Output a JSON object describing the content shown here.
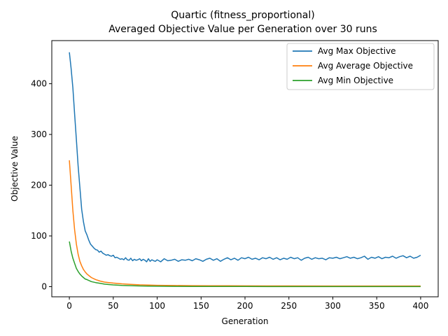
{
  "chart_data": {
    "type": "line",
    "title_line1": "Quartic (fitness_proportional)",
    "title_line2": "Averaged Objective Value per Generation over 30 runs",
    "xlabel": "Generation",
    "ylabel": "Objective Value",
    "xlim": [
      -20,
      420
    ],
    "ylim": [
      -20,
      485
    ],
    "xticks": [
      0,
      50,
      100,
      150,
      200,
      250,
      300,
      350,
      400
    ],
    "yticks": [
      0,
      100,
      200,
      300,
      400
    ],
    "grid": false,
    "legend_position": "top-right",
    "series": [
      {
        "name": "Avg Max Objective",
        "color": "#1f77b4",
        "x": [
          0,
          2,
          4,
          6,
          8,
          10,
          12,
          14,
          16,
          18,
          20,
          22,
          24,
          26,
          28,
          30,
          32,
          34,
          36,
          38,
          40,
          42,
          44,
          46,
          48,
          50,
          52,
          54,
          56,
          58,
          60,
          62,
          64,
          66,
          68,
          70,
          72,
          74,
          76,
          78,
          80,
          82,
          84,
          86,
          88,
          90,
          92,
          94,
          96,
          98,
          100,
          104,
          108,
          112,
          116,
          120,
          124,
          128,
          132,
          136,
          140,
          144,
          148,
          152,
          156,
          160,
          164,
          168,
          172,
          176,
          180,
          184,
          188,
          192,
          196,
          200,
          204,
          208,
          212,
          216,
          220,
          224,
          228,
          232,
          236,
          240,
          244,
          248,
          252,
          256,
          260,
          264,
          268,
          272,
          276,
          280,
          284,
          288,
          292,
          296,
          300,
          304,
          308,
          312,
          316,
          320,
          324,
          328,
          332,
          336,
          340,
          344,
          348,
          352,
          356,
          360,
          364,
          368,
          372,
          376,
          380,
          384,
          388,
          392,
          396,
          400
        ],
        "y": [
          462,
          430,
          392,
          340,
          290,
          238,
          196,
          152,
          128,
          110,
          102,
          92,
          84,
          80,
          76,
          73,
          72,
          68,
          70,
          66,
          64,
          62,
          63,
          61,
          60,
          62,
          57,
          58,
          56,
          54,
          55,
          53,
          57,
          53,
          52,
          56,
          51,
          54,
          52,
          53,
          55,
          51,
          54,
          52,
          49,
          55,
          50,
          53,
          51,
          50,
          53,
          49,
          55,
          51,
          52,
          54,
          50,
          53,
          52,
          54,
          51,
          55,
          53,
          50,
          54,
          56,
          52,
          55,
          50,
          54,
          57,
          53,
          56,
          52,
          57,
          55,
          58,
          54,
          56,
          53,
          57,
          55,
          58,
          54,
          57,
          53,
          56,
          54,
          58,
          55,
          57,
          52,
          56,
          58,
          54,
          57,
          55,
          56,
          53,
          57,
          56,
          58,
          55,
          57,
          59,
          56,
          58,
          55,
          57,
          60,
          54,
          58,
          56,
          59,
          55,
          58,
          57,
          60,
          56,
          59,
          61,
          57,
          60,
          56,
          58,
          62
        ]
      },
      {
        "name": "Avg Average Objective",
        "color": "#ff7f0e",
        "x": [
          0,
          2,
          4,
          6,
          8,
          10,
          12,
          14,
          16,
          18,
          20,
          25,
          30,
          35,
          40,
          45,
          50,
          60,
          70,
          80,
          90,
          100,
          120,
          140,
          160,
          180,
          200,
          250,
          300,
          350,
          400
        ],
        "y": [
          249,
          200,
          150,
          112,
          84,
          64,
          50,
          41,
          34,
          29,
          25,
          18,
          14,
          11,
          9,
          8,
          7,
          5.5,
          4.5,
          3.6,
          3.0,
          2.6,
          2.2,
          1.9,
          1.7,
          1.6,
          1.5,
          1.4,
          1.3,
          1.3,
          1.3
        ]
      },
      {
        "name": "Avg Min Objective",
        "color": "#2ca02c",
        "x": [
          0,
          2,
          4,
          6,
          8,
          10,
          12,
          14,
          16,
          18,
          20,
          25,
          30,
          35,
          40,
          45,
          50,
          60,
          70,
          80,
          90,
          100,
          120,
          140,
          160,
          180,
          200,
          250,
          300,
          350,
          400
        ],
        "y": [
          89,
          70,
          56,
          46,
          36,
          30,
          25,
          21,
          18,
          15,
          14,
          10,
          8,
          6.5,
          5,
          4.2,
          3.5,
          2.5,
          1.9,
          1.4,
          1.1,
          0.9,
          0.6,
          0.45,
          0.35,
          0.3,
          0.25,
          0.2,
          0.18,
          0.15,
          0.14
        ]
      }
    ]
  }
}
